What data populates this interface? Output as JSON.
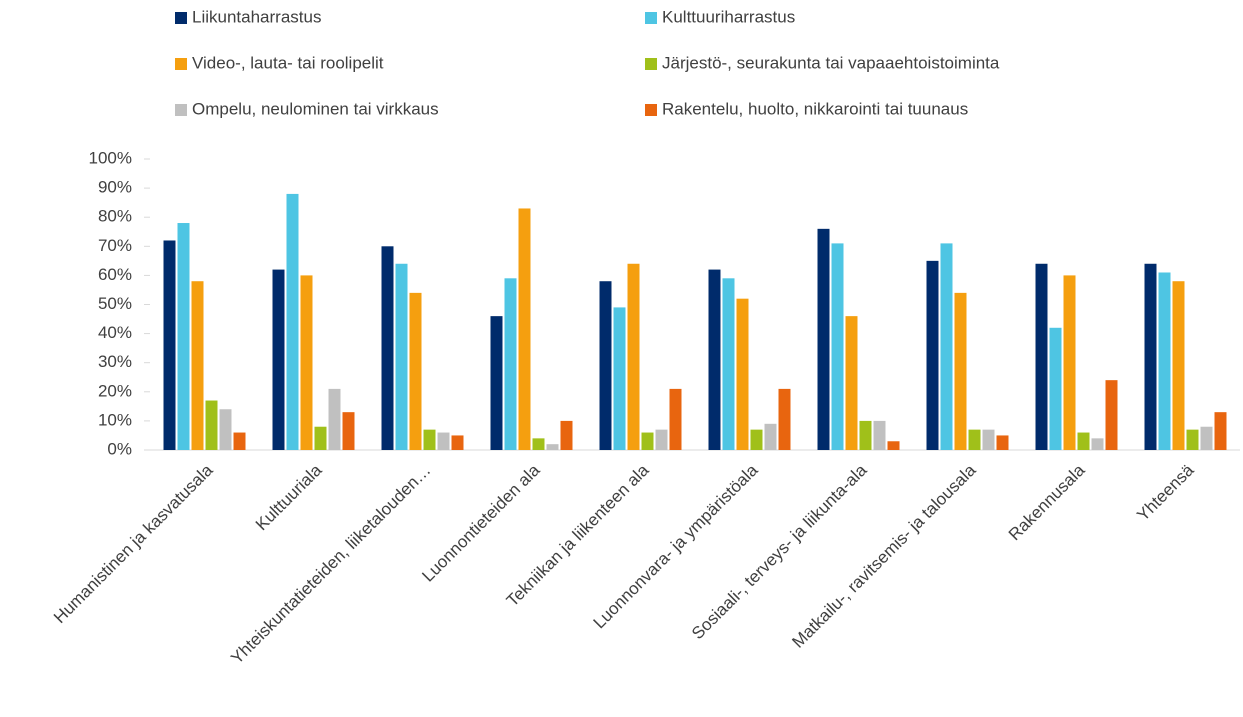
{
  "chart_data": {
    "type": "bar",
    "categories": [
      "Humanistinen ja kasvatusala",
      "Kulttuuriala",
      "Yhteiskuntatieteiden, liiketalouden…",
      "Luonnontieteiden ala",
      "Tekniikan ja liikenteen ala",
      "Luonnonvara- ja ympäristöala",
      "Sosiaali-, terveys- ja liikunta-ala",
      "Matkailu-, ravitsemis- ja talousala",
      "Rakennusala",
      "Yhteensä"
    ],
    "series": [
      {
        "name": "Liikuntaharrastus",
        "color": "#002b6b",
        "values": [
          72,
          62,
          70,
          46,
          58,
          62,
          76,
          65,
          64,
          64
        ]
      },
      {
        "name": "Kulttuuriharrastus",
        "color": "#4ec5e3",
        "values": [
          78,
          88,
          64,
          59,
          49,
          59,
          71,
          71,
          42,
          61
        ]
      },
      {
        "name": "Video-, lauta- tai roolipelit",
        "color": "#f59f0f",
        "values": [
          58,
          60,
          54,
          83,
          64,
          52,
          46,
          54,
          60,
          58
        ]
      },
      {
        "name": "Järjestö-, seurakunta tai vapaaehtoistoiminta",
        "color": "#a0c01a",
        "values": [
          17,
          8,
          7,
          4,
          6,
          7,
          10,
          7,
          6,
          7
        ]
      },
      {
        "name": "Ompelu, neulominen tai virkkaus",
        "color": "#c0c0c0",
        "values": [
          14,
          21,
          6,
          2,
          7,
          9,
          10,
          7,
          4,
          8
        ]
      },
      {
        "name": "Rakentelu, huolto, nikkarointi tai tuunaus",
        "color": "#e8650f",
        "values": [
          6,
          13,
          5,
          10,
          21,
          21,
          3,
          5,
          24,
          13
        ]
      }
    ],
    "ylim": [
      0,
      100
    ],
    "yticks": [
      {
        "value": 0,
        "label": "0%"
      },
      {
        "value": 10,
        "label": "10%"
      },
      {
        "value": 20,
        "label": "20%"
      },
      {
        "value": 30,
        "label": "30%"
      },
      {
        "value": 40,
        "label": "40%"
      },
      {
        "value": 50,
        "label": "50%"
      },
      {
        "value": 60,
        "label": "60%"
      },
      {
        "value": 70,
        "label": "70%"
      },
      {
        "value": 80,
        "label": "80%"
      },
      {
        "value": 90,
        "label": "90%"
      },
      {
        "value": 100,
        "label": "100%"
      }
    ],
    "legend": "top"
  }
}
